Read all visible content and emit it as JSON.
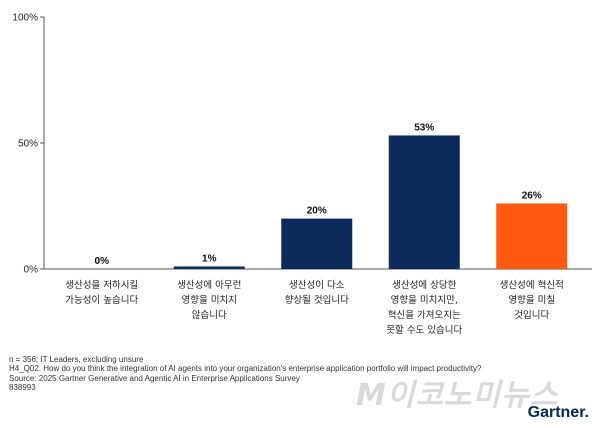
{
  "chart_data": {
    "type": "bar",
    "categories": [
      [
        "생산성을 저하시킬",
        "가능성이 높습니다"
      ],
      [
        "생산성에 아무런",
        "영향을 미치지",
        "않습니다"
      ],
      [
        "생산성이 다소",
        "향상될 것입니다"
      ],
      [
        "생산성에 상당한",
        "영향을 미치지만,",
        "혁신을 가져오지는",
        "못할 수도 있습니다"
      ],
      [
        "생산성에 혁신적",
        "영향을 미칠",
        "것입니다"
      ]
    ],
    "values": [
      0,
      1,
      20,
      53,
      26
    ],
    "value_labels": [
      "0%",
      "1%",
      "20%",
      "53%",
      "26%"
    ],
    "colors": [
      "#0d2a5c",
      "#0d2a5c",
      "#0d2a5c",
      "#0d2a5c",
      "#ff5a0f"
    ],
    "yticks": [
      "0%",
      "50%",
      "100%"
    ],
    "ylim": [
      0,
      100
    ],
    "grid": false
  },
  "notes": [
    "n = 356; IT Leaders, excluding unsure",
    "H4_Q02. How do you think the integration of AI agents into your organization's enterprise application portfolio will impact productivity?",
    "Source: 2025 Gartner Generative and Agentic AI in Enterprise Applications Survey",
    "838993"
  ],
  "watermark": "M이코노미뉴스",
  "logo": "Gartner"
}
